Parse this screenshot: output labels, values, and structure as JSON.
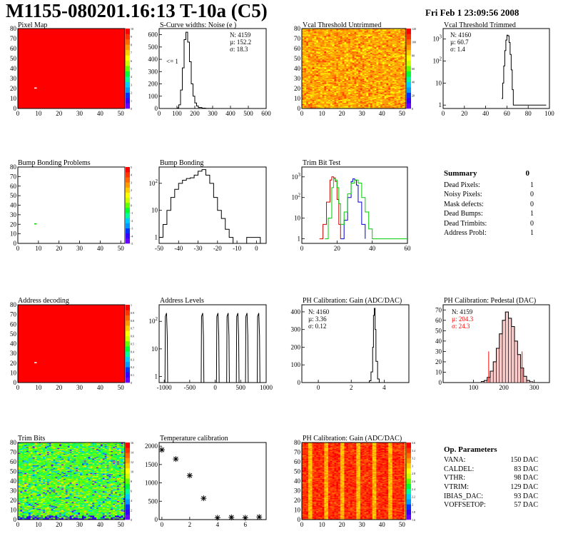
{
  "header": {
    "title": "M1155-080201.16:13 T-10a (C5)",
    "date": "Fri Feb  1 23:09:56 2008"
  },
  "panels": {
    "pixel_map": {
      "title": "Pixel Map"
    },
    "scurve": {
      "title": "S-Curve widths: Noise (e )",
      "stats_n": "N: 4159",
      "stats_mu": "µ: 152.2",
      "stats_sigma": "σ: 18.3",
      "annotation": "<= 1"
    },
    "vcal_untrimmed": {
      "title": "Vcal Threshold Untrimmed"
    },
    "vcal_trimmed": {
      "title": "Vcal Threshold Trimmed",
      "stats_n": "N: 4160",
      "stats_mu": "µ: 60.7",
      "stats_sigma": "σ:  1.4"
    },
    "bump_problems": {
      "title": "Bump Bonding Problems"
    },
    "bump_bonding": {
      "title": "Bump Bonding"
    },
    "trim_bit_test": {
      "title": "Trim Bit Test"
    },
    "address_decoding": {
      "title": "Address decoding"
    },
    "address_levels": {
      "title": "Address Levels"
    },
    "ph_gain": {
      "title": "PH Calibration: Gain (ADC/DAC)",
      "stats_n": "N: 4160",
      "stats_mu": "µ: 3.36",
      "stats_sigma": "σ: 0.12"
    },
    "ph_pedestal": {
      "title": "PH Calibration: Pedestal (DAC)",
      "stats_n": "N: 4159",
      "stats_mu": "µ: 204.3",
      "stats_sigma": "σ: 24.3"
    },
    "trim_bits": {
      "title": "Trim Bits"
    },
    "temperature": {
      "title": "Temperature calibration"
    },
    "ph_gain_map": {
      "title": "PH Calibration: Gain (ADC/DAC)"
    }
  },
  "summary": {
    "title": "Summary",
    "total": "0",
    "rows": [
      {
        "label": "Dead Pixels:",
        "value": "1"
      },
      {
        "label": "Noisy Pixels:",
        "value": "0"
      },
      {
        "label": "Mask defects:",
        "value": "0"
      },
      {
        "label": "Dead Bumps:",
        "value": "1"
      },
      {
        "label": "Dead Trimbits:",
        "value": "0"
      },
      {
        "label": "Address Probl:",
        "value": "1"
      }
    ]
  },
  "op_params": {
    "title": "Op. Parameters",
    "rows": [
      {
        "label": "VANA:",
        "value": "150 DAC"
      },
      {
        "label": "CALDEL:",
        "value": "83 DAC"
      },
      {
        "label": "VTHR:",
        "value": "98 DAC"
      },
      {
        "label": "VTRIM:",
        "value": "129 DAC"
      },
      {
        "label": "IBIAS_DAC:",
        "value": "93 DAC"
      },
      {
        "label": "VOFFSETOP:",
        "value": "57 DAC"
      }
    ]
  },
  "colors": {
    "red": "#ff0000",
    "pedestal_stats": "#ff0000",
    "trim_red": "#cc0000",
    "trim_blue": "#0000cc",
    "trim_green": "#00cc00"
  },
  "chart_data": [
    {
      "id": "pixel_map",
      "type": "heatmap",
      "title": "Pixel Map",
      "x_ticks": [
        "0",
        "10",
        "20",
        "30",
        "40",
        "50"
      ],
      "y_ticks": [
        "0",
        "10",
        "20",
        "30",
        "40",
        "50",
        "60",
        "70",
        "80"
      ],
      "xlim": [
        0,
        52
      ],
      "ylim": [
        0,
        80
      ],
      "z_ticks": [
        "0",
        "1",
        "2",
        "3",
        "4",
        "5",
        "6",
        "7",
        "8",
        "9",
        "10"
      ],
      "fill": "uniform",
      "anomaly": {
        "x": 8,
        "y": 21
      }
    },
    {
      "id": "scurve",
      "type": "line",
      "title": "S-Curve widths: Noise (e )",
      "x_ticks": [
        "0",
        "100",
        "200",
        "300",
        "400",
        "500",
        "600"
      ],
      "y_ticks": [
        "0",
        "100",
        "200",
        "300",
        "400",
        "500",
        "600"
      ],
      "xlim": [
        0,
        600
      ],
      "ylim": [
        0,
        650
      ],
      "x": [
        80,
        100,
        110,
        120,
        130,
        140,
        150,
        160,
        170,
        180,
        190,
        200,
        210,
        220,
        240,
        260,
        280,
        300
      ],
      "y": [
        0,
        5,
        30,
        150,
        330,
        560,
        620,
        540,
        380,
        200,
        100,
        45,
        20,
        8,
        3,
        1,
        1,
        0
      ]
    },
    {
      "id": "vcal_untrimmed",
      "type": "heatmap",
      "title": "Vcal Threshold Untrimmed",
      "x_ticks": [
        "0",
        "10",
        "20",
        "30",
        "40",
        "50"
      ],
      "y_ticks": [
        "0",
        "10",
        "20",
        "30",
        "40",
        "50",
        "60",
        "70",
        "80"
      ],
      "xlim": [
        0,
        52
      ],
      "ylim": [
        0,
        80
      ],
      "z_ticks": [
        "0",
        "20",
        "40",
        "60",
        "80",
        "100",
        "120"
      ],
      "fill": "noise-orange"
    },
    {
      "id": "vcal_trimmed",
      "type": "line",
      "title": "Vcal Threshold Trimmed",
      "log_y": true,
      "x_ticks": [
        "0",
        "20",
        "40",
        "60",
        "80",
        "100"
      ],
      "y_ticks": [
        "1",
        "10",
        "10^2",
        "10^3"
      ],
      "xlim": [
        0,
        100
      ],
      "ylim": [
        0.7,
        3000
      ],
      "x": [
        55,
        56,
        57,
        58,
        59,
        60,
        61,
        62,
        63,
        64,
        65,
        66,
        97
      ],
      "y": [
        2,
        10,
        60,
        300,
        900,
        1500,
        1400,
        700,
        200,
        40,
        5,
        1,
        1
      ]
    },
    {
      "id": "bump_problems",
      "type": "heatmap",
      "title": "Bump Bonding Problems",
      "x_ticks": [
        "0",
        "10",
        "20",
        "30",
        "40",
        "50"
      ],
      "y_ticks": [
        "0",
        "10",
        "20",
        "30",
        "40",
        "50",
        "60",
        "70",
        "80"
      ],
      "xlim": [
        0,
        52
      ],
      "ylim": [
        0,
        80
      ],
      "z_ticks": [
        "-5",
        "-4",
        "-3",
        "-2",
        "-1",
        "0",
        "1",
        "2",
        "3",
        "4",
        "5"
      ],
      "fill": "empty",
      "anomaly": {
        "x": 8,
        "y": 21
      }
    },
    {
      "id": "bump_bonding",
      "type": "line",
      "title": "Bump Bonding",
      "log_y": true,
      "x_ticks": [
        "-50",
        "-40",
        "-30",
        "-20",
        "-10",
        "0"
      ],
      "y_ticks": [
        "1",
        "10",
        "10^2"
      ],
      "xlim": [
        -50,
        5
      ],
      "ylim": [
        0.6,
        400
      ],
      "x": [
        -50,
        -48,
        -46,
        -44,
        -42,
        -40,
        -38,
        -36,
        -34,
        -32,
        -30,
        -28,
        -26,
        -24,
        -22,
        -20,
        -18,
        -16,
        -14,
        -12,
        -5,
        -3,
        1,
        2
      ],
      "y": [
        1,
        3,
        10,
        30,
        60,
        100,
        130,
        150,
        160,
        200,
        280,
        320,
        200,
        100,
        30,
        10,
        5,
        2,
        1,
        0,
        1,
        1,
        1,
        0
      ]
    },
    {
      "id": "trim_bit_test",
      "type": "line",
      "title": "Trim Bit Test",
      "log_y": true,
      "x_ticks": [
        "0",
        "20",
        "40",
        "60"
      ],
      "y_ticks": [
        "1",
        "10",
        "10^2",
        "10^3"
      ],
      "xlim": [
        0,
        60
      ],
      "ylim": [
        0.6,
        3000
      ],
      "series": [
        {
          "color": "red",
          "x": [
            10,
            12,
            14,
            16,
            17,
            18,
            19,
            20,
            21,
            22
          ],
          "y": [
            1,
            5,
            60,
            700,
            1000,
            900,
            600,
            80,
            5,
            1
          ]
        },
        {
          "color": "blue",
          "x": [
            22,
            24,
            26,
            28,
            29,
            30,
            31,
            32,
            34,
            36
          ],
          "y": [
            1,
            8,
            100,
            600,
            800,
            700,
            400,
            60,
            5,
            1
          ]
        },
        {
          "color": "green",
          "x": [
            13,
            15,
            17,
            18,
            19,
            20,
            21,
            22,
            24,
            26,
            28,
            30,
            32,
            34,
            36,
            38,
            40,
            60
          ],
          "y": [
            1,
            10,
            300,
            800,
            700,
            300,
            50,
            5,
            20,
            150,
            500,
            700,
            500,
            100,
            20,
            3,
            1,
            1
          ]
        }
      ]
    },
    {
      "id": "address_decoding",
      "type": "heatmap",
      "title": "Address decoding",
      "x_ticks": [
        "0",
        "10",
        "20",
        "30",
        "40",
        "50"
      ],
      "y_ticks": [
        "0",
        "10",
        "20",
        "30",
        "40",
        "50",
        "60",
        "70",
        "80"
      ],
      "xlim": [
        0,
        52
      ],
      "ylim": [
        0,
        80
      ],
      "z_ticks": [
        "0",
        "0.1",
        "0.2",
        "0.3",
        "0.4",
        "0.5",
        "0.6",
        "0.7",
        "0.8",
        "0.9",
        "1"
      ],
      "fill": "uniform",
      "anomaly": {
        "x": 8,
        "y": 21
      }
    },
    {
      "id": "address_levels",
      "type": "line",
      "title": "Address Levels",
      "log_y": true,
      "x_ticks": [
        "-1000",
        "-500",
        "0",
        "500",
        "1000"
      ],
      "y_ticks": [
        "1",
        "10",
        "10^2"
      ],
      "xlim": [
        -1100,
        1000
      ],
      "ylim": [
        0.6,
        400
      ],
      "peaks": [
        -960,
        -250,
        50,
        250,
        440,
        620,
        850
      ]
    },
    {
      "id": "ph_gain",
      "type": "line",
      "title": "PH Calibration: Gain (ADC/DAC)",
      "x_ticks": [
        "0",
        "2",
        "4"
      ],
      "y_ticks": [
        "0",
        "100",
        "200",
        "300",
        "400"
      ],
      "xlim": [
        -1,
        5.5
      ],
      "ylim": [
        0,
        440
      ],
      "x": [
        3.0,
        3.1,
        3.2,
        3.3,
        3.35,
        3.4,
        3.45,
        3.5,
        3.6,
        3.7
      ],
      "y": [
        0,
        10,
        60,
        200,
        380,
        420,
        300,
        120,
        20,
        0
      ]
    },
    {
      "id": "ph_pedestal",
      "type": "bar",
      "title": "PH Calibration: Pedestal (DAC)",
      "x_ticks": [
        "100",
        "200",
        "300"
      ],
      "y_ticks": [
        "0",
        "10",
        "20",
        "30",
        "40",
        "50",
        "60",
        "70"
      ],
      "xlim": [
        0,
        350
      ],
      "ylim": [
        0,
        75
      ],
      "x": [
        130,
        140,
        150,
        160,
        170,
        180,
        190,
        200,
        210,
        220,
        230,
        240,
        250,
        260,
        270,
        280,
        290
      ],
      "y": [
        1,
        2,
        5,
        11,
        20,
        33,
        47,
        60,
        68,
        62,
        54,
        40,
        27,
        14,
        6,
        2,
        1
      ]
    },
    {
      "id": "trim_bits",
      "type": "heatmap",
      "title": "Trim Bits",
      "x_ticks": [
        "0",
        "10",
        "20",
        "30",
        "40",
        "50"
      ],
      "y_ticks": [
        "0",
        "10",
        "20",
        "30",
        "40",
        "50",
        "60",
        "70",
        "80"
      ],
      "xlim": [
        0,
        52
      ],
      "ylim": [
        0,
        80
      ],
      "z_ticks": [
        "0",
        "2",
        "4",
        "6",
        "8",
        "10",
        "12",
        "14",
        "16"
      ],
      "fill": "noise-green"
    },
    {
      "id": "temperature",
      "type": "scatter",
      "title": "Temperature calibration",
      "x_ticks": [
        "0",
        "2",
        "4",
        "6"
      ],
      "y_ticks": [
        "0",
        "500",
        "1000",
        "1500",
        "2000"
      ],
      "xlim": [
        -0.2,
        7.5
      ],
      "ylim": [
        0,
        2100
      ],
      "x": [
        0,
        1,
        2,
        3,
        4,
        5,
        6,
        7
      ],
      "y": [
        1900,
        1650,
        1200,
        580,
        50,
        60,
        50,
        70
      ]
    },
    {
      "id": "ph_gain_map",
      "type": "heatmap",
      "title": "PH Calibration: Gain (ADC/DAC)",
      "x_ticks": [
        "0",
        "10",
        "20",
        "30",
        "40",
        "50"
      ],
      "y_ticks": [
        "0",
        "10",
        "20",
        "30",
        "40",
        "50",
        "60",
        "70",
        "80"
      ],
      "xlim": [
        0,
        52
      ],
      "ylim": [
        0,
        80
      ],
      "z_ticks": [
        "1.6",
        "1.8",
        "2",
        "2.2",
        "2.4",
        "2.6",
        "2.8",
        "3",
        "3.2",
        "3.4",
        "3.6"
      ],
      "fill": "columns-red"
    }
  ]
}
